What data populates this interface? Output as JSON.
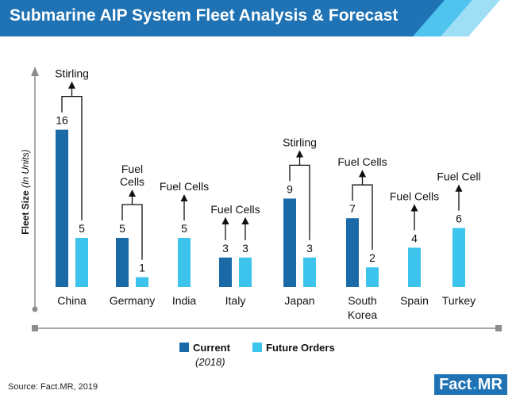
{
  "title": "Submarine AIP System Fleet Analysis & Forecast",
  "source": "Source: Fact.MR, 2019",
  "logo": {
    "part1": "Fact",
    "sep": ".",
    "part2": "MR"
  },
  "colors": {
    "header": "#1f73b5",
    "current": "#1a6aa8",
    "future": "#3cc4ec",
    "axis": "#8c8c8c"
  },
  "chart_data": {
    "type": "bar",
    "ylabel": "Fleet Size",
    "ylabel_unit": "(In Units)",
    "legend": {
      "current": "Current",
      "current_sub": "(2018)",
      "future": "Future Orders"
    },
    "series": [
      {
        "name": "Current",
        "values": [
          16,
          5,
          null,
          3,
          9,
          7,
          null,
          null
        ]
      },
      {
        "name": "Future Orders",
        "values": [
          5,
          1,
          5,
          3,
          3,
          2,
          4,
          6
        ]
      }
    ],
    "categories": [
      {
        "lines": [
          "China"
        ],
        "tech": [
          "Stirling"
        ],
        "style": "bracket"
      },
      {
        "lines": [
          "Germany"
        ],
        "tech": [
          "Fuel",
          "Cells"
        ],
        "style": "bracket"
      },
      {
        "lines": [
          "India"
        ],
        "tech": [
          "Fuel Cells"
        ],
        "style": "single"
      },
      {
        "lines": [
          "Italy"
        ],
        "tech": [
          "Fuel Cells"
        ],
        "style": "double"
      },
      {
        "lines": [
          "Japan"
        ],
        "tech": [
          "Stirling"
        ],
        "style": "bracket"
      },
      {
        "lines": [
          "South",
          "Korea"
        ],
        "tech": [
          "Fuel Cells"
        ],
        "style": "bracket"
      },
      {
        "lines": [
          "Spain"
        ],
        "tech": [
          "Fuel Cells"
        ],
        "style": "single"
      },
      {
        "lines": [
          "Turkey"
        ],
        "tech": [
          "Fuel Cell"
        ],
        "style": "single"
      }
    ]
  }
}
